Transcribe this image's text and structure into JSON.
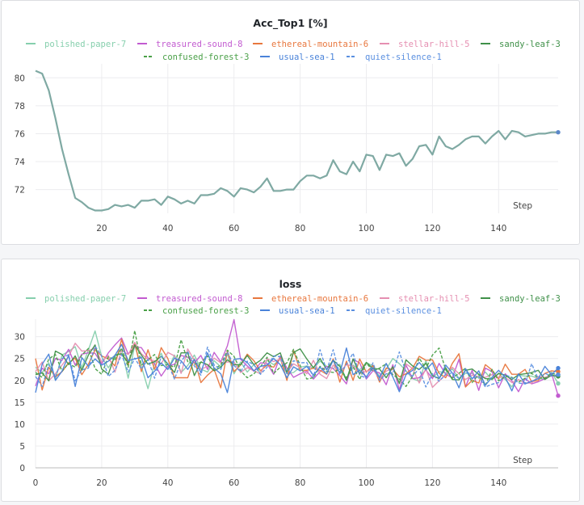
{
  "colors": {
    "polished-paper-7": "#86cfad",
    "treasured-sound-8": "#c25bd0",
    "ethereal-mountain-6": "#e8773e",
    "stellar-hill-5": "#e58fb1",
    "sandy-leaf-3": "#3f9049",
    "confused-forest-3": "#4aa048",
    "usual-sea-1": "#4a83d9",
    "quiet-silence-1": "#5a8fe0"
  },
  "legend": [
    {
      "name": "polished-paper-7",
      "dash": false
    },
    {
      "name": "treasured-sound-8",
      "dash": false
    },
    {
      "name": "ethereal-mountain-6",
      "dash": false
    },
    {
      "name": "stellar-hill-5",
      "dash": false
    },
    {
      "name": "sandy-leaf-3",
      "dash": false
    },
    {
      "name": "confused-forest-3",
      "dash": true
    },
    {
      "name": "usual-sea-1",
      "dash": false
    },
    {
      "name": "quiet-silence-1",
      "dash": true
    }
  ],
  "chart_data": [
    {
      "type": "line",
      "title": "Acc_Top1 [%]",
      "xlabel": "Step",
      "xticks": [
        20,
        40,
        60,
        80,
        100,
        120,
        140
      ],
      "yticks": [
        72,
        74,
        76,
        78,
        80
      ],
      "xlim": [
        0,
        158
      ],
      "ylim": [
        70.3,
        81
      ],
      "grid": true,
      "legend_position": "top",
      "series": [
        {
          "name": "polished-paper-7",
          "x": [
            0,
            2,
            4,
            6,
            8,
            10,
            12,
            14,
            16,
            18,
            20,
            22,
            24,
            26,
            28,
            30,
            32,
            34,
            36,
            38,
            40,
            42,
            44,
            46,
            48,
            50,
            52,
            54,
            56,
            58,
            60,
            62,
            64,
            66,
            68,
            70,
            72,
            74,
            76,
            78,
            80,
            82,
            84,
            86,
            88,
            90,
            92,
            94,
            96,
            98,
            100,
            102,
            104,
            106,
            108,
            110,
            112,
            114,
            116,
            118,
            120,
            122,
            124,
            126,
            128,
            130,
            132,
            134,
            136,
            138,
            140,
            142,
            144,
            146,
            148,
            150,
            152,
            154,
            156,
            158
          ],
          "y": [
            80.5,
            80.3,
            79.1,
            77.1,
            74.9,
            73.1,
            71.4,
            71.1,
            70.7,
            70.5,
            70.5,
            70.6,
            70.9,
            70.8,
            70.9,
            70.7,
            71.2,
            71.2,
            71.3,
            70.9,
            71.5,
            71.3,
            71.0,
            71.2,
            71.0,
            71.6,
            71.6,
            71.7,
            72.1,
            71.9,
            71.5,
            72.1,
            72.0,
            71.8,
            72.2,
            72.8,
            71.9,
            71.9,
            72.0,
            72.0,
            72.6,
            73.0,
            73.0,
            72.8,
            73.0,
            74.1,
            73.3,
            73.1,
            74.0,
            73.3,
            74.5,
            74.4,
            73.4,
            74.5,
            74.4,
            74.6,
            73.7,
            74.2,
            75.1,
            75.2,
            74.5,
            75.8,
            75.1,
            74.9,
            75.2,
            75.6,
            75.8,
            75.8,
            75.3,
            75.8,
            76.2,
            75.6,
            76.2,
            76.1,
            75.8,
            75.9,
            76.0,
            76.0,
            76.1,
            76.1
          ]
        }
      ]
    },
    {
      "type": "line",
      "title": "loss",
      "xlabel": "Step",
      "xticks": [
        0,
        20,
        40,
        60,
        80,
        100,
        120,
        140
      ],
      "yticks": [
        0,
        5,
        10,
        15,
        20,
        25,
        30
      ],
      "xlim": [
        0,
        158
      ],
      "ylim": [
        0,
        34
      ],
      "grid": true,
      "legend_position": "top",
      "series": [
        {
          "name": "polished-paper-7",
          "y": [
            23.0,
            21.8,
            24.0,
            20.2,
            25.8,
            26.6,
            27.7,
            22.9,
            27.0,
            31.3,
            25.4,
            22.9,
            25.2,
            27.1,
            20.5,
            28.0,
            23.2,
            18.1,
            23.9,
            26.2,
            22.5,
            25.8,
            21.8,
            23.4,
            25.8,
            22.6,
            21.9,
            24.5,
            23.1,
            26.0,
            21.5,
            24.2,
            21.9,
            23.6,
            21.6,
            24.6,
            23.6,
            24.8,
            21.5,
            21.8,
            23.0,
            23.3,
            22.8,
            24.4,
            23.2,
            22.7,
            23.7,
            20.2,
            23.5,
            22.4,
            24.1,
            23.3,
            20.9,
            22.6,
            25.0,
            23.8,
            22.2,
            20.4,
            19.8,
            24.5,
            20.6,
            22.0,
            21.7,
            22.6,
            20.5,
            21.6,
            21.6,
            20.5,
            21.9,
            20.1,
            21.6,
            20.2,
            18.5,
            21.2,
            21.0,
            21.0,
            20.4,
            20.3,
            21.9,
            19.3
          ]
        },
        {
          "name": "treasured-sound-8",
          "y": [
            18.7,
            22.8,
            21.5,
            25.0,
            24.6,
            27.1,
            23.5,
            26.0,
            26.3,
            26.2,
            23.8,
            26.3,
            28.1,
            29.7,
            26.0,
            27.6,
            27.5,
            25.2,
            23.8,
            21.0,
            23.2,
            23.7,
            25.7,
            25.3,
            24.0,
            25.7,
            22.5,
            26.4,
            24.2,
            27.9,
            33.9,
            24.8,
            23.3,
            22.1,
            24.0,
            23.9,
            21.4,
            25.6,
            22.8,
            20.7,
            21.5,
            22.1,
            20.3,
            22.0,
            23.2,
            22.7,
            21.1,
            19.2,
            24.8,
            24.0,
            20.3,
            22.2,
            21.7,
            19.0,
            23.6,
            17.8,
            23.5,
            20.4,
            20.6,
            22.4,
            20.4,
            23.9,
            21.4,
            20.6,
            24.8,
            18.5,
            22.3,
            17.7,
            22.8,
            22.0,
            18.3,
            21.5,
            19.9,
            17.4,
            20.4,
            19.2,
            19.7,
            20.4,
            21.6,
            16.5
          ]
        },
        {
          "name": "ethereal-mountain-6",
          "y": [
            25.0,
            17.8,
            23.0,
            20.8,
            22.0,
            24.0,
            25.1,
            21.3,
            23.7,
            27.0,
            25.6,
            24.9,
            23.3,
            29.4,
            23.6,
            28.6,
            22.0,
            27.0,
            22.5,
            27.5,
            25.0,
            20.6,
            20.6,
            20.6,
            24.9,
            19.5,
            21.2,
            22.5,
            18.3,
            26.7,
            22.0,
            23.5,
            26.0,
            24.5,
            22.2,
            23.5,
            23.0,
            25.2,
            20.0,
            26.8,
            22.3,
            22.3,
            22.8,
            22.3,
            21.4,
            24.9,
            19.6,
            24.4,
            20.0,
            24.9,
            21.9,
            23.4,
            19.6,
            22.8,
            22.5,
            20.8,
            21.5,
            22.8,
            25.5,
            24.6,
            24.7,
            21.6,
            20.6,
            23.9,
            26.1,
            18.5,
            20.0,
            19.4,
            23.6,
            22.4,
            20.3,
            23.7,
            21.4,
            21.4,
            22.5,
            19.7,
            20.0,
            21.6,
            22.2,
            22.0
          ]
        },
        {
          "name": "stellar-hill-5",
          "y": [
            22.0,
            24.2,
            19.9,
            21.5,
            23.5,
            25.5,
            28.5,
            26.7,
            26.8,
            27.4,
            24.2,
            25.7,
            21.9,
            26.9,
            25.9,
            28.7,
            26.1,
            24.8,
            24.5,
            23.8,
            26.4,
            25.6,
            21.6,
            27.2,
            24.6,
            22.5,
            23.2,
            25.1,
            24.0,
            24.2,
            24.2,
            21.8,
            22.9,
            22.2,
            21.5,
            24.9,
            24.3,
            24.9,
            21.8,
            23.8,
            22.9,
            21.5,
            24.6,
            21.4,
            20.4,
            23.5,
            21.9,
            23.6,
            23.3,
            21.6,
            22.1,
            22.5,
            20.4,
            22.1,
            22.8,
            19.3,
            23.8,
            22.7,
            19.4,
            22.7,
            18.4,
            19.9,
            21.2,
            23.0,
            21.5,
            20.2,
            21.2,
            20.8,
            20.7,
            21.3,
            20.7,
            20.7,
            19.5,
            20.2,
            19.4,
            19.4,
            20.9,
            20.7,
            21.0,
            21.0
          ]
        },
        {
          "name": "sandy-leaf-3",
          "y": [
            21.3,
            21.7,
            19.9,
            26.7,
            25.9,
            23.6,
            25.6,
            22.3,
            25.8,
            28.1,
            22.6,
            21.4,
            25.8,
            26.1,
            24.0,
            28.1,
            25.8,
            23.7,
            24.3,
            25.5,
            23.7,
            21.8,
            26.3,
            26.3,
            21.1,
            24.2,
            23.6,
            22.2,
            23.0,
            24.7,
            23.6,
            23.6,
            25.7,
            23.6,
            24.6,
            26.3,
            25.4,
            26.3,
            21.8,
            26.4,
            27.2,
            24.9,
            22.9,
            25.0,
            22.5,
            24.6,
            23.2,
            20.0,
            24.9,
            21.5,
            24.1,
            22.7,
            22.6,
            20.6,
            23.1,
            19.3,
            24.7,
            23.3,
            22.5,
            23.9,
            21.1,
            20.4,
            22.9,
            20.2,
            20.1,
            22.3,
            22.6,
            21.4,
            20.4,
            20.3,
            21.6,
            21.2,
            20.2,
            21.3,
            21.5,
            21.8,
            22.3,
            20.2,
            21.2,
            20.9
          ]
        },
        {
          "name": "confused-forest-3",
          "y": [
            21.8,
            20.7,
            24.9,
            25.9,
            22.1,
            23.9,
            23.0,
            25.8,
            27.3,
            22.7,
            21.4,
            25.4,
            24.7,
            27.4,
            23.0,
            31.4,
            23.5,
            24.7,
            25.9,
            23.4,
            23.6,
            23.0,
            29.3,
            24.3,
            23.7,
            24.1,
            25.6,
            22.6,
            23.5,
            26.9,
            25.5,
            22.2,
            20.6,
            21.5,
            23.1,
            25.3,
            21.6,
            23.0,
            24.0,
            27.1,
            23.4,
            20.3,
            20.6,
            23.2,
            22.1,
            21.8,
            22.6,
            20.6,
            23.1,
            20.2,
            24.0,
            22.1,
            22.8,
            23.8,
            21.3,
            20.3,
            18.6,
            20.9,
            25.1,
            22.7,
            25.8,
            27.4,
            22.4,
            20.5,
            21.6,
            22.8,
            19.5,
            21.4,
            18.8,
            22.5,
            19.9,
            20.9,
            20.7,
            19.6,
            20.5,
            21.6,
            20.6,
            20.5,
            21.6,
            21.3
          ]
        },
        {
          "name": "usual-sea-1",
          "y": [
            17.2,
            23.7,
            26.0,
            20.0,
            22.1,
            25.7,
            18.6,
            25.2,
            23.2,
            24.9,
            23.5,
            24.4,
            25.7,
            28.2,
            24.5,
            24.9,
            25.3,
            20.6,
            22.1,
            24.0,
            22.5,
            25.1,
            24.5,
            22.5,
            24.8,
            21.8,
            26.3,
            22.8,
            21.5,
            17.2,
            24.8,
            25.0,
            24.1,
            22.2,
            23.2,
            23.5,
            25.0,
            23.6,
            20.6,
            23.1,
            22.2,
            23.2,
            21.2,
            23.0,
            21.5,
            24.6,
            21.6,
            27.4,
            21.3,
            22.3,
            20.8,
            22.9,
            20.6,
            23.9,
            20.8,
            17.4,
            21.3,
            22.3,
            24.1,
            22.4,
            24.0,
            20.4,
            23.5,
            21.7,
            18.3,
            22.7,
            20.3,
            22.2,
            18.9,
            20.7,
            22.3,
            20.7,
            17.6,
            21.5,
            19.2,
            19.8,
            20.4,
            23.2,
            21.3,
            22.8
          ]
        },
        {
          "name": "quiet-silence-1",
          "y": [
            20.9,
            18.6,
            23.6,
            20.8,
            25.0,
            25.9,
            19.9,
            22.4,
            22.8,
            27.8,
            25.6,
            20.9,
            22.3,
            25.9,
            21.9,
            25.1,
            22.6,
            24.8,
            20.5,
            25.5,
            23.9,
            20.3,
            24.2,
            26.6,
            23.3,
            21.2,
            27.6,
            23.5,
            22.5,
            26.5,
            23.4,
            22.0,
            24.4,
            23.6,
            21.4,
            23.0,
            25.6,
            25.4,
            21.5,
            24.5,
            24.0,
            24.1,
            20.7,
            27.0,
            22.2,
            27.0,
            21.3,
            23.7,
            26.2,
            21.2,
            20.5,
            24.0,
            20.0,
            21.5,
            21.6,
            26.5,
            21.9,
            21.0,
            22.7,
            18.5,
            21.5,
            19.8,
            21.4,
            21.7,
            20.4,
            22.1,
            20.5,
            20.9,
            18.5,
            19.1,
            19.5,
            21.3,
            20.6,
            19.4,
            19.2,
            23.8,
            20.3,
            21.6,
            21.0,
            21.3
          ]
        }
      ]
    }
  ]
}
